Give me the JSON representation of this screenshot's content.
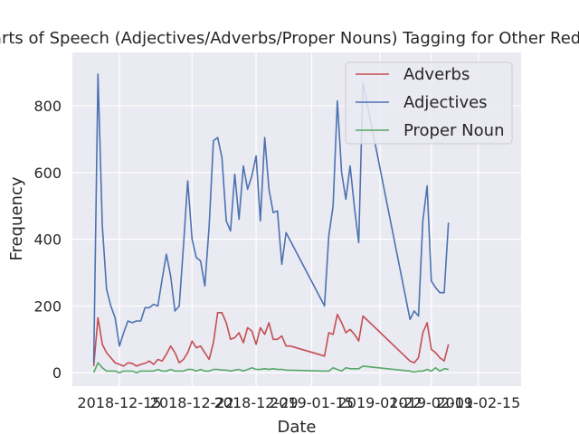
{
  "chart_data": {
    "type": "line",
    "title": "Parts of Speech (Adjectives/Adverbs/Proper Nouns) Tagging for Other Reddits",
    "xlabel": "Date",
    "ylabel": "Frequency",
    "ylim": [
      -40,
      960
    ],
    "xlim": [
      -5,
      100
    ],
    "grid": true,
    "legend_position": "top-right",
    "yticks": [
      0,
      200,
      400,
      600,
      800
    ],
    "xticks": [
      {
        "x": 6,
        "label": "2018-12-15"
      },
      {
        "x": 23,
        "label": "2018-12-22"
      },
      {
        "x": 38,
        "label": "2018-12-29"
      },
      {
        "x": 51,
        "label": "2019-01-15"
      },
      {
        "x": 67,
        "label": "2019-01-22"
      },
      {
        "x": 79,
        "label": "2019-02-01"
      },
      {
        "x": 90,
        "label": "2019-02-15"
      }
    ],
    "series": [
      {
        "name": "Adverbs",
        "color": "#c44e52",
        "points": [
          [
            0,
            20
          ],
          [
            1,
            165
          ],
          [
            2,
            85
          ],
          [
            3,
            60
          ],
          [
            4,
            45
          ],
          [
            5,
            30
          ],
          [
            6,
            25
          ],
          [
            7,
            20
          ],
          [
            8,
            30
          ],
          [
            9,
            28
          ],
          [
            10,
            20
          ],
          [
            11,
            25
          ],
          [
            12,
            28
          ],
          [
            13,
            35
          ],
          [
            14,
            25
          ],
          [
            15,
            40
          ],
          [
            16,
            35
          ],
          [
            17,
            55
          ],
          [
            18,
            80
          ],
          [
            19,
            60
          ],
          [
            20,
            30
          ],
          [
            21,
            40
          ],
          [
            22,
            60
          ],
          [
            23,
            95
          ],
          [
            24,
            75
          ],
          [
            25,
            80
          ],
          [
            26,
            60
          ],
          [
            27,
            40
          ],
          [
            28,
            90
          ],
          [
            29,
            180
          ],
          [
            30,
            180
          ],
          [
            31,
            150
          ],
          [
            32,
            100
          ],
          [
            33,
            105
          ],
          [
            34,
            120
          ],
          [
            35,
            90
          ],
          [
            36,
            135
          ],
          [
            37,
            125
          ],
          [
            38,
            85
          ],
          [
            39,
            135
          ],
          [
            40,
            115
          ],
          [
            41,
            150
          ],
          [
            42,
            100
          ],
          [
            43,
            100
          ],
          [
            44,
            110
          ],
          [
            45,
            80
          ],
          [
            46,
            80
          ],
          [
            54,
            50
          ],
          [
            55,
            120
          ],
          [
            56,
            115
          ],
          [
            57,
            175
          ],
          [
            58,
            150
          ],
          [
            59,
            120
          ],
          [
            60,
            130
          ],
          [
            61,
            115
          ],
          [
            62,
            95
          ],
          [
            63,
            170
          ],
          [
            74,
            35
          ],
          [
            75,
            30
          ],
          [
            76,
            45
          ],
          [
            77,
            120
          ],
          [
            78,
            150
          ],
          [
            79,
            70
          ],
          [
            80,
            60
          ],
          [
            81,
            45
          ],
          [
            82,
            35
          ],
          [
            83,
            85
          ]
        ]
      },
      {
        "name": "Adjectives",
        "color": "#4c72b0",
        "points": [
          [
            0,
            30
          ],
          [
            1,
            895
          ],
          [
            2,
            440
          ],
          [
            3,
            250
          ],
          [
            4,
            200
          ],
          [
            5,
            165
          ],
          [
            6,
            80
          ],
          [
            7,
            120
          ],
          [
            8,
            155
          ],
          [
            9,
            150
          ],
          [
            10,
            155
          ],
          [
            11,
            155
          ],
          [
            12,
            195
          ],
          [
            13,
            195
          ],
          [
            14,
            205
          ],
          [
            15,
            200
          ],
          [
            16,
            280
          ],
          [
            17,
            355
          ],
          [
            18,
            290
          ],
          [
            19,
            185
          ],
          [
            20,
            200
          ],
          [
            21,
            380
          ],
          [
            22,
            575
          ],
          [
            23,
            400
          ],
          [
            24,
            345
          ],
          [
            25,
            335
          ],
          [
            26,
            260
          ],
          [
            27,
            440
          ],
          [
            28,
            695
          ],
          [
            29,
            705
          ],
          [
            30,
            645
          ],
          [
            31,
            455
          ],
          [
            32,
            425
          ],
          [
            33,
            595
          ],
          [
            34,
            460
          ],
          [
            35,
            620
          ],
          [
            36,
            550
          ],
          [
            37,
            590
          ],
          [
            38,
            650
          ],
          [
            39,
            455
          ],
          [
            40,
            705
          ],
          [
            41,
            550
          ],
          [
            42,
            480
          ],
          [
            43,
            485
          ],
          [
            44,
            325
          ],
          [
            45,
            420
          ],
          [
            54,
            200
          ],
          [
            55,
            410
          ],
          [
            56,
            500
          ],
          [
            57,
            815
          ],
          [
            58,
            600
          ],
          [
            59,
            520
          ],
          [
            60,
            620
          ],
          [
            61,
            495
          ],
          [
            62,
            390
          ],
          [
            63,
            870
          ],
          [
            74,
            160
          ],
          [
            75,
            185
          ],
          [
            76,
            170
          ],
          [
            77,
            455
          ],
          [
            78,
            560
          ],
          [
            79,
            275
          ],
          [
            80,
            255
          ],
          [
            81,
            240
          ],
          [
            82,
            240
          ],
          [
            83,
            450
          ]
        ]
      },
      {
        "name": "Proper Noun",
        "color": "#55a868",
        "points": [
          [
            0,
            0
          ],
          [
            1,
            30
          ],
          [
            2,
            15
          ],
          [
            3,
            5
          ],
          [
            4,
            5
          ],
          [
            5,
            5
          ],
          [
            6,
            0
          ],
          [
            7,
            5
          ],
          [
            8,
            5
          ],
          [
            9,
            5
          ],
          [
            10,
            0
          ],
          [
            11,
            5
          ],
          [
            12,
            5
          ],
          [
            13,
            5
          ],
          [
            14,
            5
          ],
          [
            15,
            10
          ],
          [
            16,
            5
          ],
          [
            17,
            5
          ],
          [
            18,
            10
          ],
          [
            19,
            5
          ],
          [
            20,
            5
          ],
          [
            21,
            5
          ],
          [
            22,
            10
          ],
          [
            23,
            10
          ],
          [
            24,
            5
          ],
          [
            25,
            10
          ],
          [
            26,
            5
          ],
          [
            27,
            5
          ],
          [
            28,
            10
          ],
          [
            29,
            10
          ],
          [
            30,
            8
          ],
          [
            31,
            8
          ],
          [
            32,
            5
          ],
          [
            33,
            8
          ],
          [
            34,
            10
          ],
          [
            35,
            5
          ],
          [
            36,
            10
          ],
          [
            37,
            15
          ],
          [
            38,
            10
          ],
          [
            39,
            10
          ],
          [
            40,
            12
          ],
          [
            41,
            10
          ],
          [
            42,
            12
          ],
          [
            43,
            10
          ],
          [
            44,
            10
          ],
          [
            45,
            8
          ],
          [
            54,
            5
          ],
          [
            55,
            5
          ],
          [
            56,
            15
          ],
          [
            57,
            10
          ],
          [
            58,
            5
          ],
          [
            59,
            15
          ],
          [
            60,
            12
          ],
          [
            61,
            12
          ],
          [
            62,
            12
          ],
          [
            63,
            20
          ],
          [
            74,
            5
          ],
          [
            75,
            2
          ],
          [
            76,
            5
          ],
          [
            77,
            5
          ],
          [
            78,
            10
          ],
          [
            79,
            5
          ],
          [
            80,
            15
          ],
          [
            81,
            5
          ],
          [
            82,
            12
          ],
          [
            83,
            10
          ]
        ]
      }
    ]
  }
}
